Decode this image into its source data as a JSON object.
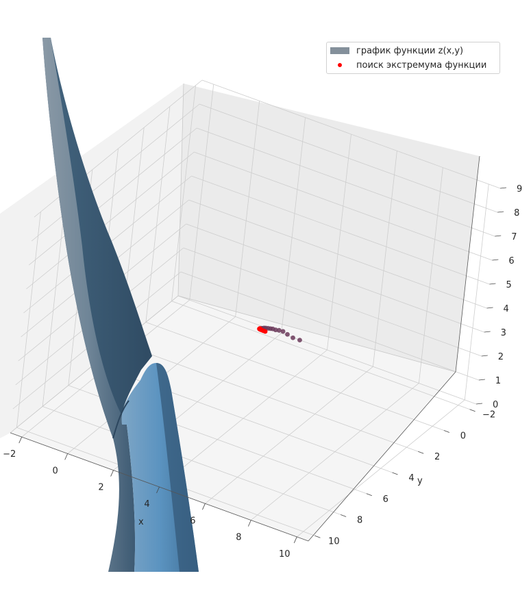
{
  "chart_data": {
    "type": "surface3d",
    "xlabel": "x",
    "ylabel": "y",
    "zlabel": "",
    "xlim": [
      -2.5,
      10.5
    ],
    "ylim": [
      -2.5,
      10.5
    ],
    "zlim": [
      0,
      9
    ],
    "x_ticks": [
      "−2",
      "0",
      "2",
      "4",
      "6",
      "8",
      "10"
    ],
    "y_ticks": [
      "−2",
      "0",
      "2",
      "4",
      "6",
      "8",
      "10"
    ],
    "z_ticks": [
      "0",
      "1",
      "2",
      "3",
      "4",
      "5",
      "6",
      "7",
      "8",
      "9"
    ],
    "grid": true,
    "legend_position": "top-right",
    "series": [
      {
        "name": "график функции z(x,y)",
        "kind": "surface",
        "color": "#84909b"
      },
      {
        "name": "поиск экстремума функции",
        "kind": "scatter",
        "color": "#ff0000",
        "points": [
          {
            "x": 3.05,
            "y": -2.0,
            "z": 0.3
          },
          {
            "x": 3.0,
            "y": -1.5,
            "z": 0.6
          },
          {
            "x": 2.95,
            "y": -1.1,
            "z": 0.9
          },
          {
            "x": 2.95,
            "y": -0.7,
            "z": 1.2
          },
          {
            "x": 2.95,
            "y": -0.35,
            "z": 1.4
          },
          {
            "x": 2.95,
            "y": -0.05,
            "z": 1.55
          },
          {
            "x": 2.95,
            "y": 0.2,
            "z": 1.7
          },
          {
            "x": 2.95,
            "y": 0.4,
            "z": 1.8
          },
          {
            "x": 2.95,
            "y": 0.6,
            "z": 1.9
          },
          {
            "x": 2.95,
            "y": 0.8,
            "z": 2.0
          },
          {
            "x": 2.95,
            "y": 0.95,
            "z": 2.07
          },
          {
            "x": 2.95,
            "y": 1.1,
            "z": 2.12
          },
          {
            "x": 2.95,
            "y": 1.2,
            "z": 2.16
          },
          {
            "x": 2.95,
            "y": 1.3,
            "z": 2.2
          },
          {
            "x": 2.98,
            "y": 1.4,
            "z": 2.24
          },
          {
            "x": 3.02,
            "y": 1.45,
            "z": 2.27
          },
          {
            "x": 3.08,
            "y": 1.5,
            "z": 2.29
          },
          {
            "x": 3.15,
            "y": 1.52,
            "z": 2.3
          },
          {
            "x": 3.22,
            "y": 1.53,
            "z": 2.3
          },
          {
            "x": 3.3,
            "y": 1.53,
            "z": 2.3
          }
        ]
      }
    ]
  }
}
